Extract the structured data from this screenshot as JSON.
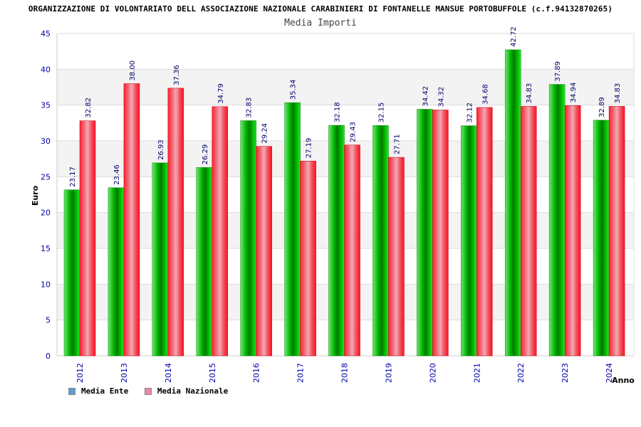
{
  "header": {
    "title": "ORGANIZZAZIONE DI VOLONTARIATO DELL ASSOCIAZIONE NAZIONALE CARABINIERI DI FONTANELLE MANSUE PORTOBUFFOLE (c.f.94132870265)",
    "subtitle": "Media Importi"
  },
  "colors": {
    "ente": "#00cc00",
    "nazionale": "#ff1a2e",
    "legend_ente": "#5b9bd5",
    "legend_nazionale": "#e887b0",
    "axis_text": "#0000aa",
    "label_text": "#000066"
  },
  "legend": {
    "ente": "Media Ente",
    "nazionale": "Media Nazionale"
  },
  "chart_data": {
    "type": "bar",
    "title": "ORGANIZZAZIONE DI VOLONTARIATO DELL ASSOCIAZIONE NAZIONALE CARABINIERI DI FONTANELLE MANSUE PORTOBUFFOLE (c.f.94132870265)",
    "subtitle": "Media Importi",
    "xlabel": "Anno",
    "ylabel": "Euro",
    "ylim": [
      0,
      45
    ],
    "yticks": [
      0,
      5,
      10,
      15,
      20,
      25,
      30,
      35,
      40,
      45
    ],
    "grid": true,
    "legend_position": "bottom-left",
    "categories": [
      "2012",
      "2013",
      "2014",
      "2015",
      "2016",
      "2017",
      "2018",
      "2019",
      "2020",
      "2021",
      "2022",
      "2023",
      "2024"
    ],
    "series": [
      {
        "name": "Media Ente",
        "values": [
          23.17,
          23.46,
          26.93,
          26.29,
          32.83,
          35.34,
          32.18,
          32.15,
          34.42,
          32.12,
          42.72,
          37.89,
          32.89
        ],
        "labels": [
          "23.17",
          "23.46",
          "26.93",
          "26.29",
          "32.83",
          "35.34",
          "32.18",
          "32.15",
          "34.42",
          "32.12",
          "42.72",
          "37.89",
          "32.89"
        ]
      },
      {
        "name": "Media Nazionale",
        "values": [
          32.82,
          38.0,
          37.36,
          34.79,
          29.24,
          27.19,
          29.43,
          27.71,
          34.32,
          34.68,
          34.83,
          34.94,
          34.83
        ],
        "labels": [
          "32.82",
          "38.00",
          "37.36",
          "34.79",
          "29.24",
          "27.19",
          "29.43",
          "27.71",
          "34.32",
          "34.68",
          "34.83",
          "34.94",
          "34.83"
        ]
      }
    ]
  }
}
